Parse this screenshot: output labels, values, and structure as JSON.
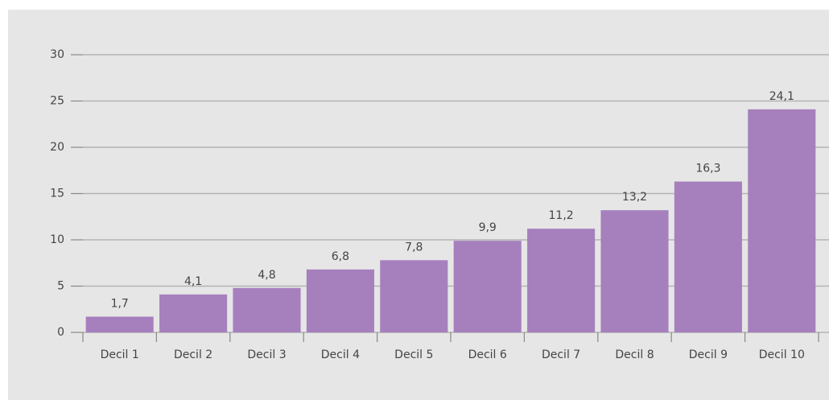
{
  "chart_data": {
    "type": "bar",
    "categories": [
      "Decil 1",
      "Decil 2",
      "Decil 3",
      "Decil 4",
      "Decil 5",
      "Decil 6",
      "Decil 7",
      "Decil 8",
      "Decil 9",
      "Decil 10"
    ],
    "values": [
      1.7,
      4.1,
      4.8,
      6.8,
      7.8,
      9.9,
      11.2,
      13.2,
      16.3,
      24.1
    ],
    "value_labels": [
      "1,7",
      "4,1",
      "4,8",
      "6,8",
      "7,8",
      "9,9",
      "11,2",
      "13,2",
      "16,3",
      "24,1"
    ],
    "color": "#a67fbd",
    "ylim": [
      0,
      30
    ],
    "yticks": [
      0,
      5,
      10,
      15,
      20,
      25,
      30
    ],
    "grid": true
  }
}
